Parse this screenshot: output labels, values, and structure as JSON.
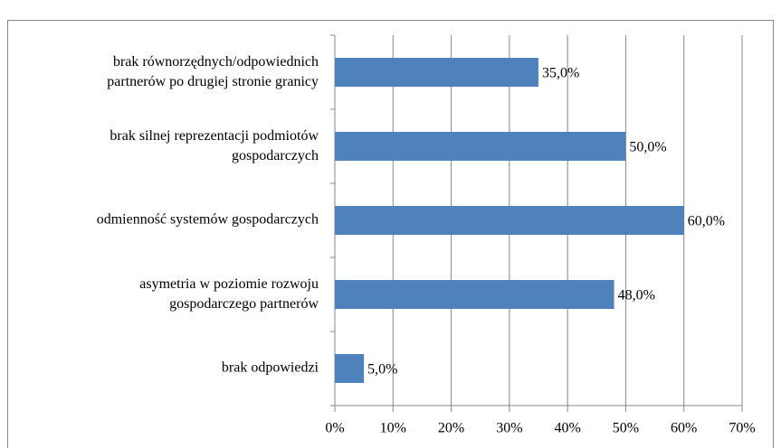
{
  "chart_data": {
    "type": "bar",
    "orientation": "horizontal",
    "categories": [
      "brak równorzędnych/odpowiednich\npartnerów po drugiej stronie granicy",
      "brak silnej reprezentacji podmiotów\ngospodarczych",
      "odmienność systemów gospodarczych",
      "asymetria w poziomie rozwoju\ngospodarczego partnerów",
      "brak odpowiedzi"
    ],
    "values": [
      35,
      50,
      60,
      48,
      5
    ],
    "value_labels": [
      "35,0%",
      "50,0%",
      "60,0%",
      "48,0%",
      "5,0%"
    ],
    "color": "#4f81bd",
    "xlim": [
      0,
      70
    ],
    "xticks": [
      {
        "value": 0,
        "label": "0%"
      },
      {
        "value": 10,
        "label": "10%"
      },
      {
        "value": 20,
        "label": "20%"
      },
      {
        "value": 30,
        "label": "30%"
      },
      {
        "value": 40,
        "label": "40%"
      },
      {
        "value": 50,
        "label": "50%"
      },
      {
        "value": 60,
        "label": "60%"
      },
      {
        "value": 70,
        "label": "70%"
      }
    ],
    "grid": true
  }
}
